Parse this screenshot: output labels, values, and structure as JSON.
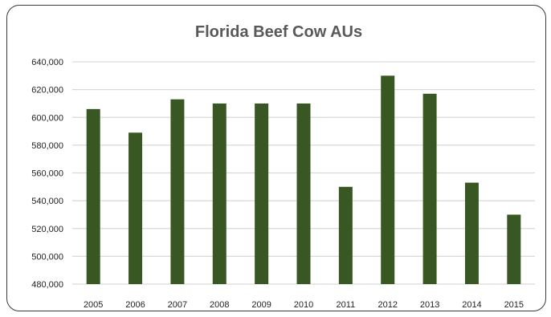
{
  "chart_data": {
    "type": "bar",
    "title": "Florida Beef Cow AUs",
    "categories": [
      "2005",
      "2006",
      "2007",
      "2008",
      "2009",
      "2010",
      "2011",
      "2012",
      "2013",
      "2014",
      "2015"
    ],
    "values": [
      606000,
      589000,
      613000,
      610000,
      610000,
      610000,
      550000,
      630000,
      617000,
      553000,
      530000
    ],
    "ylim": [
      480000,
      640000
    ],
    "yticks": [
      480000,
      500000,
      520000,
      540000,
      560000,
      580000,
      600000,
      620000,
      640000
    ],
    "ytick_labels": [
      "480,000",
      "500,000",
      "520,000",
      "540,000",
      "560,000",
      "580,000",
      "600,000",
      "620,000",
      "640,000"
    ],
    "grid": true,
    "bar_color": "#385723",
    "grid_color": "#d9d9d9"
  }
}
